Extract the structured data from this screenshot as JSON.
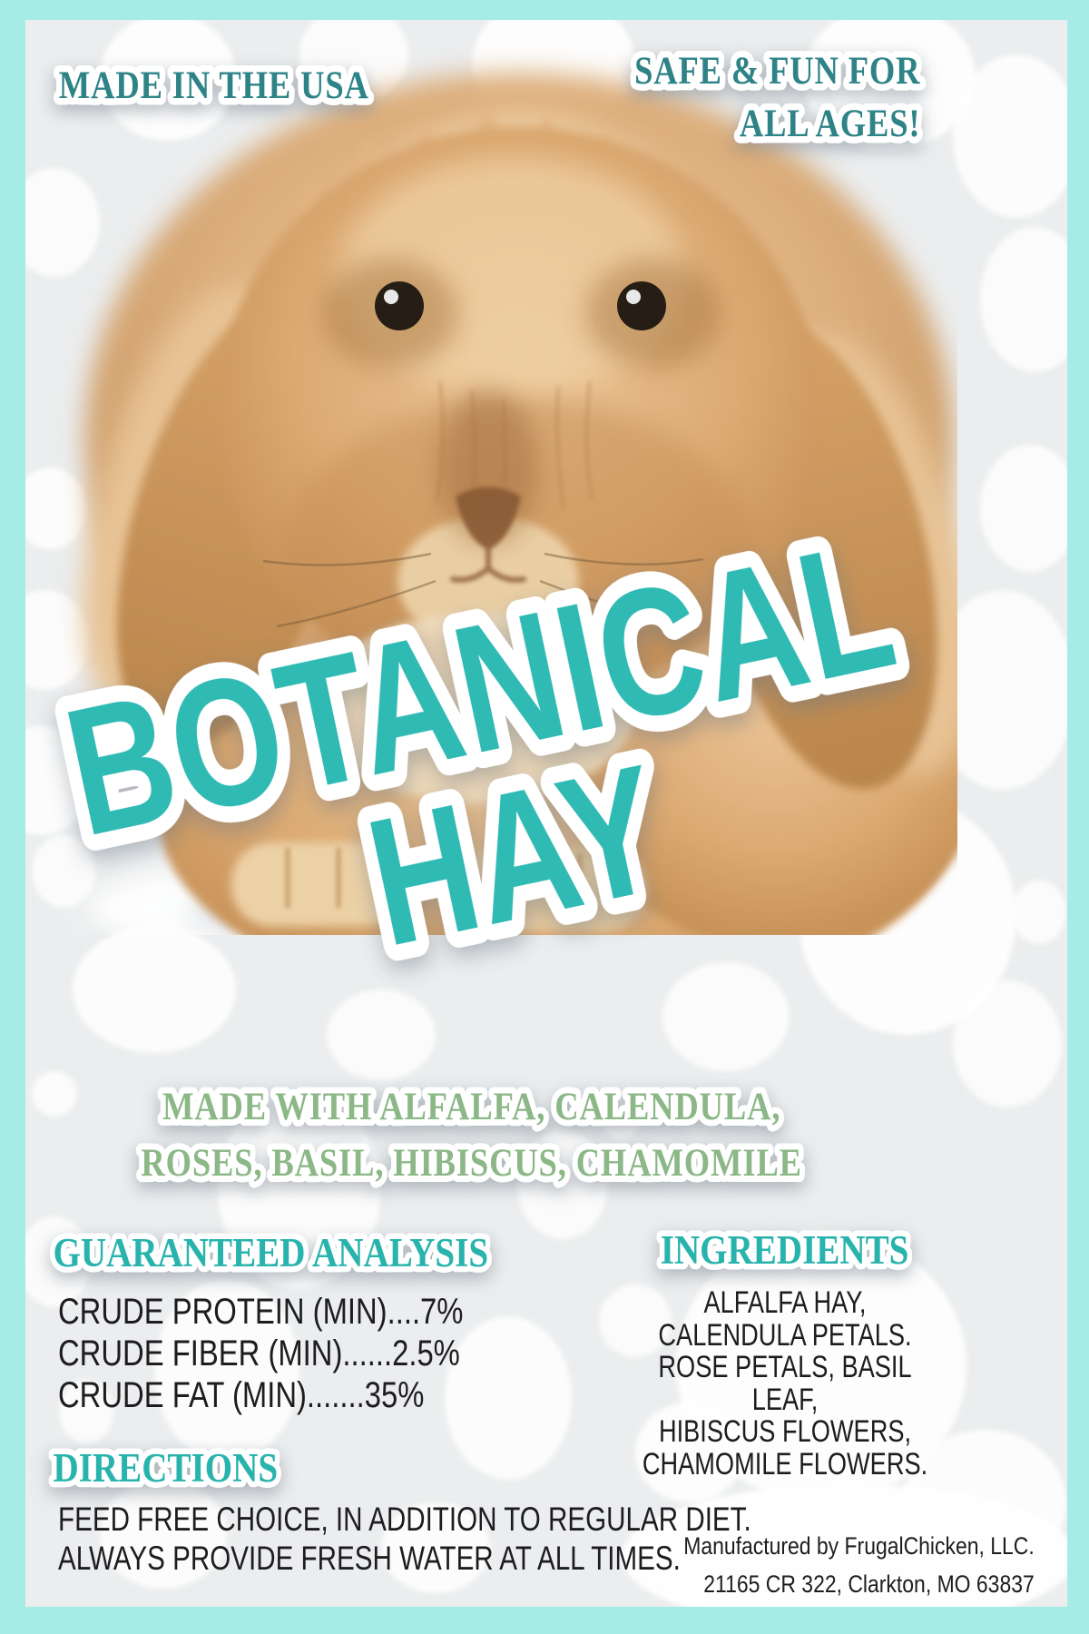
{
  "badges": {
    "made_in_usa": "MADE IN THE USA",
    "safe_fun_line1": "SAFE & FUN FOR",
    "safe_fun_line2": "ALL AGES!"
  },
  "title": {
    "line1": "BOTANICAL",
    "line2": "HAY"
  },
  "subtitle": {
    "line1": "MADE WITH ALFALFA, CALENDULA,",
    "line2": "ROSES, BASIL, HIBISCUS, CHAMOMILE"
  },
  "guaranteed_analysis": {
    "heading": "GUARANTEED ANALYSIS",
    "rows": [
      "CRUDE PROTEIN (MIN)....7%",
      "CRUDE FIBER (MIN)......2.5%",
      "CRUDE FAT (MIN).......35%"
    ]
  },
  "ingredients": {
    "heading": "INGREDIENTS",
    "lines": [
      "ALFALFA HAY,",
      "CALENDULA PETALS.",
      "ROSE PETALS, BASIL LEAF,",
      "HIBISCUS FLOWERS,",
      "CHAMOMILE FLOWERS."
    ]
  },
  "directions": {
    "heading": "DIRECTIONS",
    "lines": [
      "FEED FREE CHOICE, IN ADDITION TO REGULAR DIET.",
      "ALWAYS PROVIDE FRESH WATER AT ALL TIMES."
    ]
  },
  "manufacturer": {
    "line1": "Manufactured by FrugalChicken, LLC.",
    "line2": "21165 CR 322, Clarkton, MO 63837"
  },
  "colors": {
    "border_aqua": "#a6ece6",
    "background_gray": "#ebedee",
    "teal_dark": "#2e8387",
    "teal_bright": "#2fbab3",
    "teal_heading": "#29b3ad",
    "green": "#8cb787",
    "body_text": "#1d1d1f",
    "fur_tan": "#ddab74"
  }
}
